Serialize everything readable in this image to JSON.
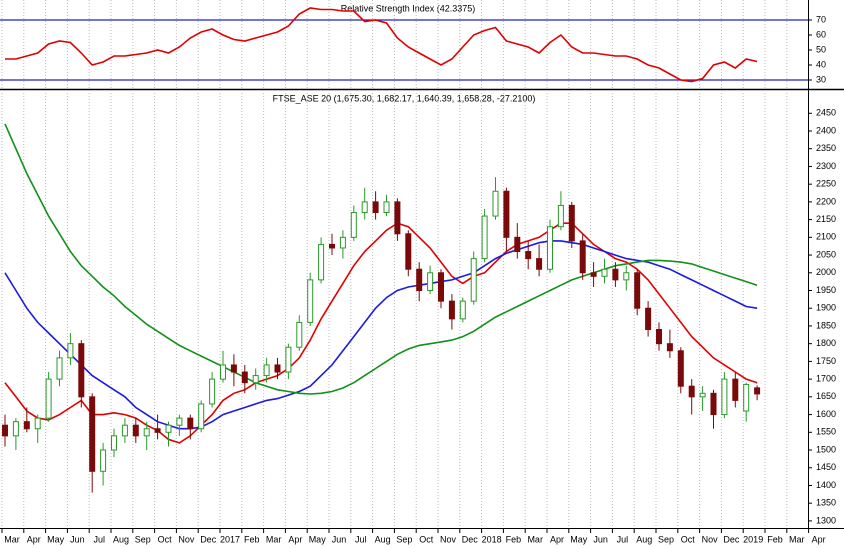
{
  "chart_data": [
    {
      "type": "line",
      "title": "Relative Strength Index (42.3375)",
      "color": "#e00000",
      "values": [
        44,
        44,
        46,
        48,
        54,
        56,
        55,
        48,
        40,
        42,
        46,
        46,
        47,
        48,
        50,
        48,
        52,
        58,
        62,
        64,
        60,
        57,
        56,
        58,
        60,
        62,
        66,
        74,
        78,
        77,
        77,
        76,
        76,
        69,
        70,
        68,
        58,
        52,
        48,
        44,
        40,
        44,
        52,
        60,
        63,
        65,
        56,
        54,
        52,
        48,
        55,
        60,
        52,
        48,
        48,
        47,
        46,
        46,
        44,
        40,
        38,
        34,
        30,
        29,
        31,
        40,
        42,
        38,
        44,
        42.3375
      ],
      "ylim": [
        25,
        82
      ],
      "yticks": [
        30,
        40,
        50,
        60,
        70
      ],
      "reference_lines": [
        30,
        70
      ],
      "reference_color": "#2020c0"
    },
    {
      "type": "candlestick",
      "title": "FTSE_ASE 20 (1,675.30, 1,682.17, 1,640.39, 1,658.28, -27.2100)",
      "up_color": "#2a9a2a",
      "down_color": "#7a0a0a",
      "grid": true,
      "categories": [
        "Mar",
        null,
        "Apr",
        null,
        "May",
        null,
        "Jun",
        null,
        "Jul",
        null,
        "Aug",
        null,
        "Sep",
        null,
        "Oct",
        null,
        "Nov",
        null,
        "Dec",
        null,
        "2017",
        null,
        "Feb",
        null,
        "Mar",
        null,
        "Apr",
        null,
        "May",
        null,
        "Jun",
        null,
        "Jul",
        null,
        "Aug",
        null,
        "Sep",
        null,
        "Oct",
        null,
        "Nov",
        null,
        "Dec",
        null,
        "2018",
        null,
        "Feb",
        null,
        "Mar",
        null,
        "Apr",
        null,
        "May",
        null,
        "Jun",
        null,
        "Jul",
        null,
        "Aug",
        null,
        "Sep",
        null,
        "Oct",
        null,
        "Nov",
        null,
        "Dec",
        null,
        "2019",
        null,
        "Feb",
        null,
        "Mar",
        null,
        "Apr",
        null
      ],
      "open": [
        1570,
        1540,
        1580,
        1560,
        1590,
        1700,
        1760,
        1800,
        1650,
        1440,
        1500,
        1540,
        1570,
        1540,
        1560,
        1550,
        1570,
        1590,
        1560,
        1630,
        1700,
        1740,
        1720,
        1690,
        1710,
        1740,
        1720,
        1790,
        1860,
        1980,
        2080,
        2070,
        2100,
        2170,
        2200,
        2170,
        2200,
        2110,
        2010,
        1950,
        2000,
        1920,
        1870,
        1920,
        2040,
        2160,
        2230,
        2100,
        2060,
        2040,
        2010,
        2130,
        2190,
        2090,
        2000,
        1990,
        2010,
        1980,
        2000,
        1900,
        1840,
        1800,
        1780,
        1680,
        1650,
        1660,
        1600,
        1700,
        1610,
        1675.3,
        null,
        null,
        null,
        null,
        null,
        null
      ],
      "high": [
        1600,
        1590,
        1620,
        1600,
        1720,
        1780,
        1830,
        1810,
        1660,
        1520,
        1560,
        1590,
        1590,
        1580,
        1600,
        1580,
        1600,
        1600,
        1640,
        1720,
        1780,
        1770,
        1740,
        1730,
        1760,
        1760,
        1800,
        1880,
        2000,
        2100,
        2110,
        2120,
        2190,
        2240,
        2230,
        2220,
        2210,
        2120,
        2030,
        2020,
        2010,
        1940,
        1930,
        2060,
        2180,
        2270,
        2240,
        2140,
        2090,
        2080,
        2150,
        2230,
        2200,
        2110,
        2030,
        2040,
        2030,
        2020,
        2010,
        1920,
        1860,
        1840,
        1790,
        1700,
        1680,
        1670,
        1720,
        1720,
        1690,
        1682.17,
        null,
        null,
        null,
        null,
        null,
        null
      ],
      "low": [
        1510,
        1500,
        1550,
        1520,
        1580,
        1680,
        1740,
        1620,
        1380,
        1400,
        1480,
        1520,
        1520,
        1500,
        1530,
        1510,
        1540,
        1530,
        1550,
        1620,
        1690,
        1680,
        1660,
        1670,
        1690,
        1700,
        1700,
        1780,
        1850,
        1970,
        2050,
        2040,
        2090,
        2150,
        2150,
        2160,
        2090,
        1990,
        1920,
        1940,
        1900,
        1840,
        1860,
        1910,
        2030,
        2150,
        2060,
        2040,
        2010,
        1990,
        2000,
        2120,
        2070,
        1980,
        1960,
        1970,
        1960,
        1950,
        1880,
        1820,
        1780,
        1760,
        1660,
        1600,
        1610,
        1560,
        1590,
        1620,
        1580,
        1640.39,
        null,
        null,
        null,
        null,
        null,
        null
      ],
      "close": [
        1540,
        1580,
        1560,
        1590,
        1700,
        1760,
        1800,
        1650,
        1440,
        1500,
        1540,
        1570,
        1540,
        1560,
        1550,
        1570,
        1590,
        1560,
        1630,
        1700,
        1740,
        1720,
        1690,
        1710,
        1740,
        1720,
        1790,
        1860,
        1980,
        2080,
        2070,
        2100,
        2170,
        2200,
        2170,
        2200,
        2110,
        2010,
        1950,
        2000,
        1920,
        1870,
        1920,
        2040,
        2160,
        2230,
        2100,
        2060,
        2040,
        2010,
        2130,
        2190,
        2090,
        2000,
        1990,
        2010,
        1980,
        2000,
        1900,
        1840,
        1800,
        1780,
        1680,
        1650,
        1660,
        1600,
        1700,
        1640,
        1685,
        1658.28,
        null,
        null,
        null,
        null,
        null,
        null
      ],
      "series": [
        {
          "color": "#e00000",
          "values": [
            1690,
            1650,
            1610,
            1590,
            1585,
            1600,
            1620,
            1640,
            1600,
            1600,
            1605,
            1600,
            1590,
            1570,
            1555,
            1530,
            1520,
            1540,
            1570,
            1600,
            1640,
            1660,
            1670,
            1690,
            1700,
            1710,
            1730,
            1760,
            1810,
            1870,
            1920,
            1970,
            2020,
            2060,
            2090,
            2120,
            2140,
            2130,
            2100,
            2070,
            2030,
            1990,
            1970,
            1990,
            2000,
            2030,
            2060,
            2080,
            2090,
            2100,
            2120,
            2140,
            2140,
            2110,
            2080,
            2060,
            2040,
            2030,
            2010,
            1980,
            1940,
            1900,
            1860,
            1820,
            1790,
            1760,
            1740,
            1720,
            1700,
            1690,
            null,
            null,
            null,
            null,
            null,
            null
          ]
        },
        {
          "color": "#1a1ae0",
          "values": [
            2000,
            1950,
            1900,
            1860,
            1830,
            1800,
            1770,
            1740,
            1710,
            1690,
            1670,
            1650,
            1620,
            1600,
            1580,
            1570,
            1560,
            1560,
            1565,
            1580,
            1600,
            1610,
            1620,
            1630,
            1640,
            1645,
            1655,
            1665,
            1680,
            1710,
            1740,
            1780,
            1820,
            1860,
            1900,
            1930,
            1950,
            1960,
            1965,
            1970,
            1975,
            1980,
            1990,
            2000,
            2020,
            2040,
            2055,
            2065,
            2075,
            2085,
            2090,
            2090,
            2085,
            2080,
            2070,
            2060,
            2050,
            2040,
            2035,
            2030,
            2020,
            2010,
            1995,
            1980,
            1965,
            1950,
            1935,
            1920,
            1905,
            1900,
            null,
            null,
            null,
            null,
            null,
            null
          ]
        },
        {
          "color": "#12901a",
          "values": [
            2420,
            2350,
            2280,
            2220,
            2160,
            2110,
            2060,
            2020,
            1990,
            1960,
            1935,
            1905,
            1880,
            1855,
            1835,
            1815,
            1795,
            1780,
            1765,
            1750,
            1735,
            1720,
            1705,
            1690,
            1680,
            1670,
            1665,
            1660,
            1658,
            1660,
            1665,
            1675,
            1690,
            1710,
            1730,
            1750,
            1770,
            1785,
            1795,
            1800,
            1805,
            1810,
            1820,
            1835,
            1855,
            1875,
            1890,
            1905,
            1920,
            1935,
            1950,
            1965,
            1980,
            1990,
            2000,
            2010,
            2020,
            2025,
            2030,
            2035,
            2035,
            2033,
            2030,
            2025,
            2015,
            2005,
            1995,
            1985,
            1975,
            1965,
            null,
            null,
            null,
            null,
            null,
            null
          ]
        }
      ],
      "ylim": [
        1280,
        2510
      ],
      "yticks": [
        1300,
        1350,
        1400,
        1450,
        1500,
        1550,
        1600,
        1650,
        1700,
        1750,
        1800,
        1850,
        1900,
        1950,
        2000,
        2050,
        2100,
        2150,
        2200,
        2250,
        2300,
        2350,
        2400,
        2450
      ]
    }
  ]
}
